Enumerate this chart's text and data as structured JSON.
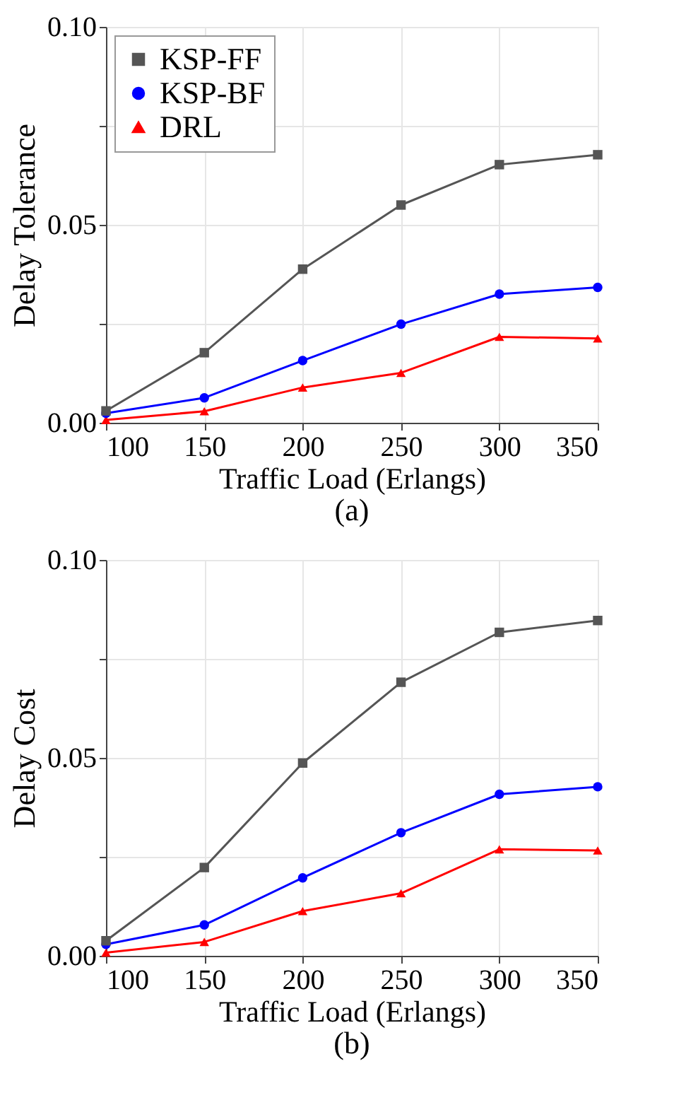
{
  "chart_data": [
    {
      "type": "line",
      "xlabel": "Traffic Load (Erlangs)",
      "ylabel": "Delay Tolerance",
      "annotations": [
        "(a)"
      ],
      "x": [
        100,
        150,
        200,
        250,
        300,
        350
      ],
      "xlim": [
        100,
        350
      ],
      "xticks": [
        100,
        150,
        200,
        250,
        300,
        350
      ],
      "ylim": [
        0,
        0.1
      ],
      "yticks": [
        {
          "value": 0,
          "label": "0.00"
        },
        {
          "value": 0.025,
          "label": null
        },
        {
          "value": 0.05,
          "label": "0.05"
        },
        {
          "value": 0.075,
          "label": null
        },
        {
          "value": 0.1,
          "label": "0.10"
        }
      ],
      "grid": true,
      "legend": "top left",
      "line_style": "solid",
      "series": [
        {
          "name": "KSP-FF",
          "color": "#555555",
          "marker": "square",
          "values": [
            0.003,
            0.0177,
            0.0388,
            0.055,
            0.0652,
            0.0677
          ]
        },
        {
          "name": "KSP-BF",
          "color": "#0000ff",
          "marker": "circle",
          "values": [
            0.0024,
            0.0063,
            0.0157,
            0.0249,
            0.0325,
            0.0342
          ]
        },
        {
          "name": "DRL",
          "color": "#ff0000",
          "marker": "triangle",
          "values": [
            0.0007,
            0.0029,
            0.0089,
            0.0126,
            0.0217,
            0.0213
          ]
        }
      ]
    },
    {
      "type": "line",
      "xlabel": "Traffic Load (Erlangs)",
      "ylabel": "Delay Cost",
      "annotations": [
        "(b)"
      ],
      "x": [
        100,
        150,
        200,
        250,
        300,
        350
      ],
      "xlim": [
        100,
        350
      ],
      "xticks": [
        100,
        150,
        200,
        250,
        300,
        350
      ],
      "ylim": [
        0,
        0.1
      ],
      "yticks": [
        {
          "value": 0,
          "label": "0.00"
        },
        {
          "value": 0.025,
          "label": null
        },
        {
          "value": 0.05,
          "label": "0.05"
        },
        {
          "value": 0.075,
          "label": null
        },
        {
          "value": 0.1,
          "label": "0.10"
        }
      ],
      "grid": true,
      "legend": "top left",
      "line_style": "solid",
      "series": [
        {
          "name": "KSP-FF",
          "color": "#555555",
          "marker": "square",
          "values": [
            0.0038,
            0.0223,
            0.0487,
            0.0691,
            0.0817,
            0.0847
          ]
        },
        {
          "name": "KSP-BF",
          "color": "#0000ff",
          "marker": "circle",
          "values": [
            0.0029,
            0.0078,
            0.0197,
            0.0311,
            0.0408,
            0.0427
          ]
        },
        {
          "name": "DRL",
          "color": "#ff0000",
          "marker": "triangle",
          "values": [
            0.0008,
            0.0035,
            0.0113,
            0.0158,
            0.0269,
            0.0266
          ]
        }
      ]
    }
  ]
}
